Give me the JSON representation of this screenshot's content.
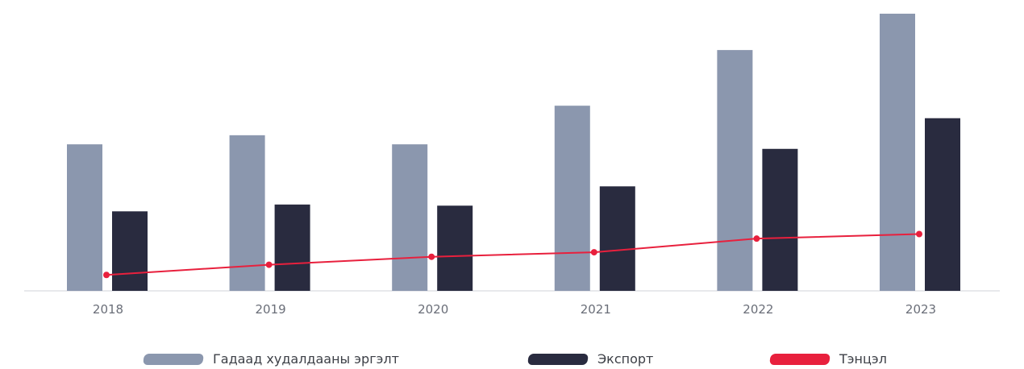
{
  "colors": {
    "turnover": "#8b97ae",
    "export": "#292b3f",
    "balance": "#e8203d",
    "axis": "#d0d3da"
  },
  "legend": {
    "turnover": "Гадаад худалдааны эргэлт",
    "export": "Экспорт",
    "balance": "Тэнцэл"
  },
  "chart_data": {
    "type": "bar",
    "categories": [
      "2018",
      "2019",
      "2020",
      "2021",
      "2022",
      "2023"
    ],
    "series": [
      {
        "name": "Гадаад худалдааны эргэлт",
        "values": [
          12.9,
          13.7,
          12.9,
          16.3,
          21.2,
          24.4
        ]
      },
      {
        "name": "Экспорт",
        "values": [
          7.0,
          7.6,
          7.5,
          9.2,
          12.5,
          15.2
        ]
      },
      {
        "name": "Тэнцэл",
        "type": "line",
        "values": [
          1.4,
          2.3,
          3.0,
          3.4,
          4.6,
          5.0
        ]
      }
    ],
    "ylim": [
      0,
      24.4
    ],
    "legend_position": "bottom",
    "grid": false
  }
}
